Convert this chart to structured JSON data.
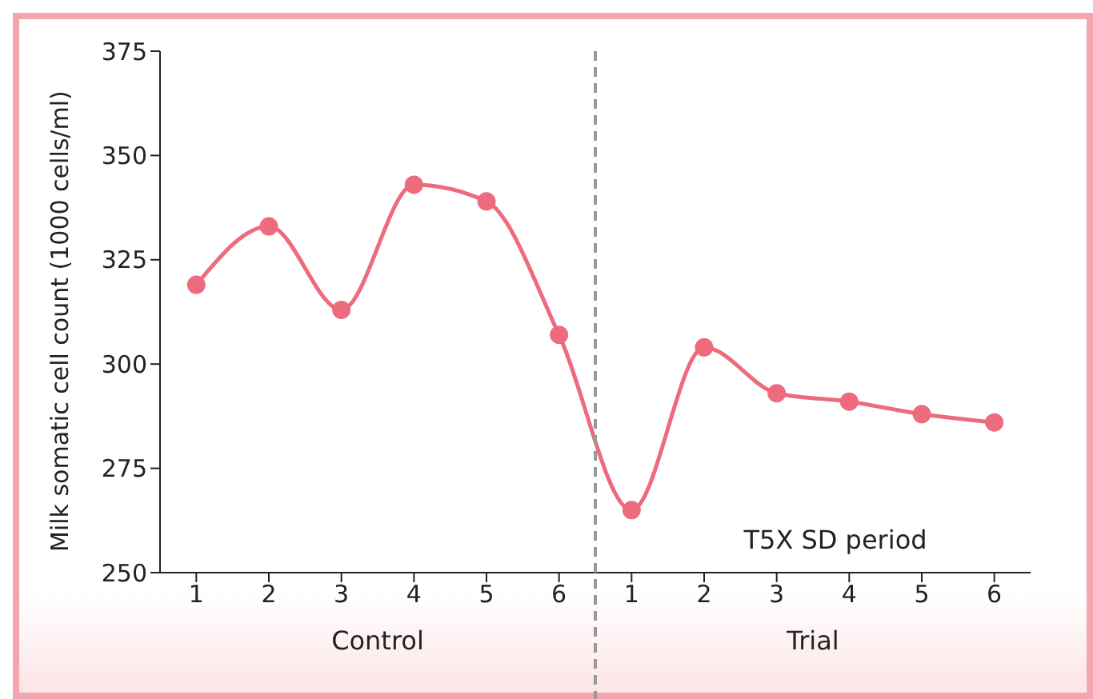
{
  "chart_data": {
    "type": "line",
    "ylabel": "Milk somatic cell count (1000 cells/ml)",
    "categories": [
      "1",
      "2",
      "3",
      "4",
      "5",
      "6",
      "1",
      "2",
      "3",
      "4",
      "5",
      "6"
    ],
    "values": [
      319,
      333,
      313,
      343,
      339,
      307,
      265,
      304,
      293,
      291,
      288,
      286
    ],
    "color": "#ee6b7e",
    "marker": "circle",
    "line_style": "solid",
    "grid": false,
    "legend": false,
    "ylim": [
      250,
      375
    ],
    "yticks": [
      250,
      275,
      300,
      325,
      350,
      375
    ],
    "annotations": [
      "Control",
      "Trial",
      "T5X SD period"
    ]
  }
}
